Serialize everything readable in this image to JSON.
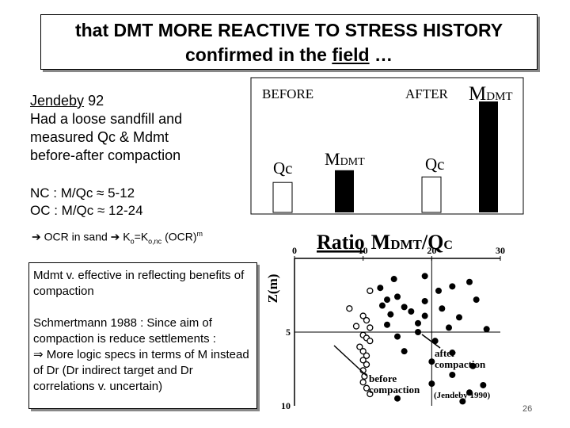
{
  "title": {
    "line1": "that DMT MORE REACTIVE TO STRESS HISTORY",
    "line2_pre": "confirmed in the ",
    "line2_field": "field",
    "line2_post": " …"
  },
  "intro": {
    "jendeby": "Jendeby",
    "year": " 92",
    "line2": "Had a loose sandfill and",
    "line3": "measured Qc & Mdmt",
    "line4": "before-after compaction"
  },
  "ranges": {
    "nc": "NC : M/Qc ≈ 5-12",
    "oc": "OC : M/Qc ≈ 12-24"
  },
  "ocr": {
    "arrow1": "➔",
    "text1": " OCR in sand ",
    "arrow2": "➔",
    "k": " K",
    "k_sub": "o",
    "eq": "=K",
    "eq_sub": "o,nc",
    "tail": " (OCR)",
    "sup": "m"
  },
  "notes": {
    "p1": "Mdmt v. effective in reflecting benefits of compaction",
    "p2": "Schmertmann 1988 : Since aim of compaction is reduce settlements :",
    "p2b": "⇒ More logic specs in terms of M instead of Dr (Dr indirect target and Dr correlations v. uncertain)"
  },
  "bar_chart": {
    "before": "BEFORE",
    "after": "AFTER",
    "qc": "Qc",
    "m": "M",
    "dmt": "DMT",
    "values": {
      "qc_before": 0.27,
      "m_before": 0.38,
      "qc_after": 0.32,
      "m_after": 1.0
    }
  },
  "profile": {
    "ratio": "Ratio",
    "m": "M",
    "dmt": "DMT",
    "slash": "/Q",
    "c": "C",
    "yaxis": "Z(m)",
    "x_ticks": [
      "0",
      "10",
      "20",
      "30"
    ],
    "y_ticks": [
      "5",
      "10"
    ],
    "before_label_1": "before",
    "before_label_2": "compaction",
    "after_label_1": "after",
    "after_label_2": "compaction",
    "source": "(Jendeby 1990)",
    "before_points": [
      [
        11,
        2.2
      ],
      [
        8,
        3.4
      ],
      [
        10,
        3.9
      ],
      [
        10.5,
        4.2
      ],
      [
        9,
        4.6
      ],
      [
        11,
        4.7
      ],
      [
        10,
        5.2
      ],
      [
        10.5,
        5.4
      ],
      [
        11,
        5.6
      ],
      [
        9.5,
        6.0
      ],
      [
        10,
        6.3
      ],
      [
        10.5,
        6.6
      ],
      [
        10,
        6.9
      ],
      [
        10.5,
        7.2
      ],
      [
        10,
        7.6
      ],
      [
        10.2,
        8.0
      ],
      [
        10,
        8.4
      ],
      [
        10.5,
        8.8
      ],
      [
        11,
        9.2
      ]
    ],
    "after_points": [
      [
        12.5,
        2.0
      ],
      [
        13.5,
        2.8
      ],
      [
        14.5,
        1.4
      ],
      [
        15,
        2.6
      ],
      [
        19,
        1.2
      ],
      [
        19,
        2.9
      ],
      [
        21,
        2.2
      ],
      [
        23,
        1.9
      ],
      [
        25.5,
        1.6
      ],
      [
        26.5,
        2.8
      ],
      [
        16,
        3.3
      ],
      [
        17,
        3.6
      ],
      [
        19,
        3.9
      ],
      [
        21.5,
        3.4
      ],
      [
        18,
        4.4
      ],
      [
        13.5,
        4.5
      ],
      [
        15,
        5.3
      ],
      [
        22.5,
        4.7
      ],
      [
        24,
        4.0
      ],
      [
        28,
        4.8
      ],
      [
        20.5,
        5.6
      ],
      [
        23,
        6.4
      ],
      [
        16,
        6.3
      ],
      [
        20,
        7.0
      ],
      [
        26,
        7.3
      ],
      [
        23,
        7.9
      ],
      [
        20,
        8.5
      ],
      [
        27.5,
        8.6
      ],
      [
        25.5,
        9.1
      ],
      [
        15,
        9.5
      ],
      [
        24.5,
        9.7
      ],
      [
        12.8,
        3.2
      ],
      [
        14,
        3.8
      ],
      [
        18,
        5.0
      ]
    ]
  },
  "page": "26"
}
